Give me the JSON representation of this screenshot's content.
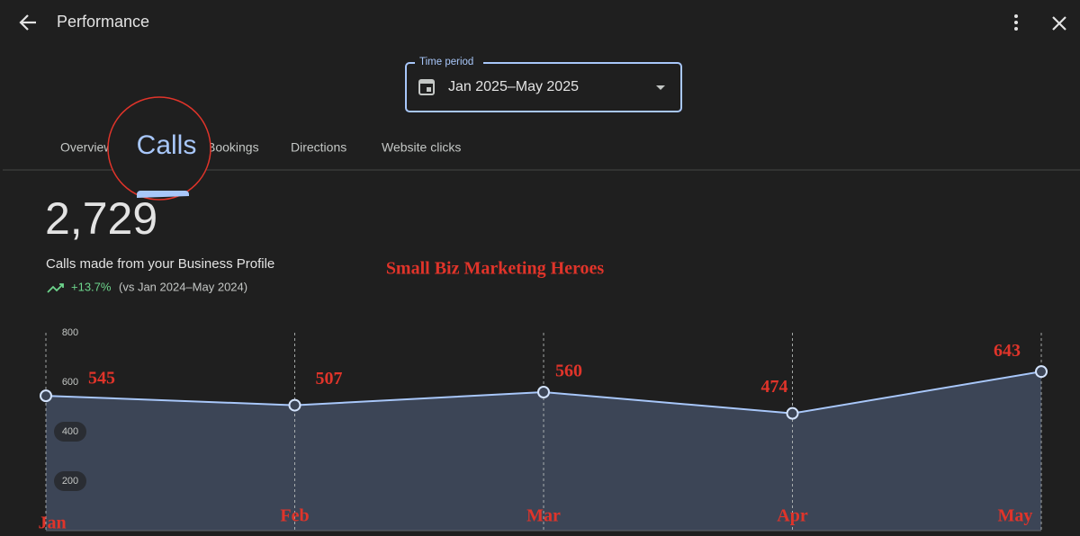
{
  "header": {
    "title": "Performance"
  },
  "time_period": {
    "label": "Time period",
    "value": "Jan 2025–May 2025"
  },
  "tabs": [
    "Overview",
    "Calls",
    "Bookings",
    "Directions",
    "Website clicks"
  ],
  "summary": {
    "total": "2,729",
    "description": "Calls made from your Business Profile",
    "change": "+13.7%",
    "comparison": "(vs Jan 2024–May 2024)"
  },
  "chart_data": {
    "type": "area",
    "annotation": "Small Biz Marketing Heroes",
    "categories": [
      "Jan",
      "Feb",
      "Mar",
      "Apr",
      "May"
    ],
    "values": [
      545,
      507,
      560,
      474,
      643
    ],
    "color": "#a8c7fa",
    "fill": "#3c4556",
    "ylim": [
      0,
      800
    ],
    "yticks": [
      200,
      400,
      600,
      800
    ],
    "grid": true
  }
}
